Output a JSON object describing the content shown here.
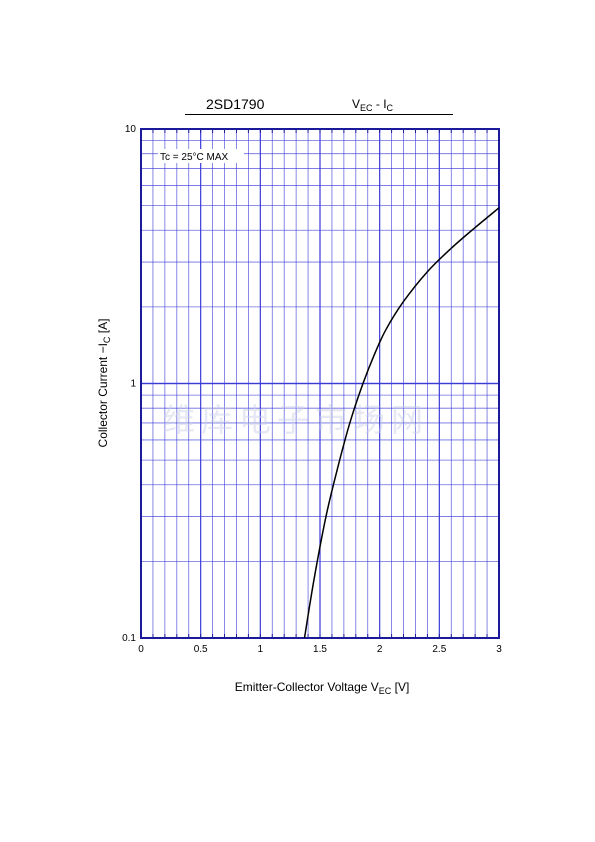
{
  "header": {
    "part_number": "2SD1790",
    "curve_main": "V",
    "curve_sub1": "EC",
    "curve_sep": " - I",
    "curve_sub2": "C"
  },
  "chart_data": {
    "type": "line",
    "xlabel_main": "Emitter-Collector Voltage  V",
    "xlabel_sub": "EC",
    "xlabel_unit": "  [V]",
    "ylabel_main": "Collector Current   −I",
    "ylabel_sub": "C",
    "ylabel_unit": "  [A]",
    "xlim": [
      0,
      3
    ],
    "ylim": [
      0.1,
      10
    ],
    "y_scale": "log",
    "x_ticks": [
      "0",
      "0.5",
      "1",
      "1.5",
      "2",
      "2.5",
      "3"
    ],
    "x_tick_values": [
      0,
      0.5,
      1,
      1.5,
      2,
      2.5,
      3
    ],
    "y_ticks": [
      "0.1",
      "1",
      "10"
    ],
    "y_tick_values": [
      0.1,
      1,
      10
    ],
    "grid": true,
    "annotation": "Tc = 25°C MAX",
    "watermark": "维库电子市场网",
    "series": [
      {
        "x": [
          1.37,
          1.45,
          1.55,
          1.65,
          1.75,
          1.85,
          1.95,
          2.05,
          2.2,
          2.4,
          2.6,
          2.8,
          3.0
        ],
        "y": [
          0.1,
          0.17,
          0.3,
          0.47,
          0.7,
          0.97,
          1.28,
          1.62,
          2.1,
          2.75,
          3.4,
          4.1,
          4.9
        ]
      }
    ]
  },
  "colors": {
    "grid": "#3b3bd8",
    "frame": "#1a1a9a",
    "curve": "#000000"
  }
}
